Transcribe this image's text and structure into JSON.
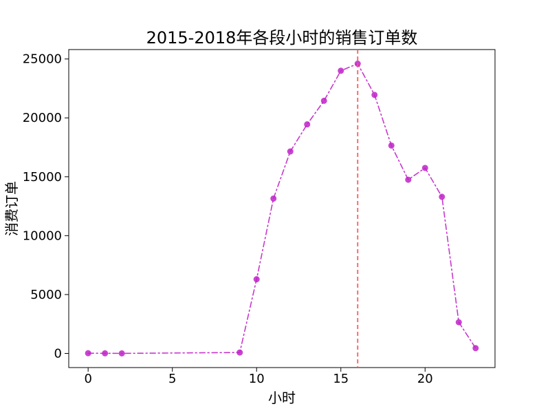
{
  "chart_data": {
    "type": "line",
    "title": "2015-2018年各段小时的销售订单数",
    "xlabel": "小时",
    "ylabel": "消费订单",
    "x": [
      0,
      1,
      2,
      9,
      10,
      11,
      12,
      13,
      14,
      15,
      16,
      17,
      18,
      19,
      20,
      21,
      22,
      23
    ],
    "series": [
      {
        "values": [
          20,
          10,
          5,
          80,
          6300,
          13150,
          17150,
          19450,
          21450,
          24000,
          24600,
          21950,
          17650,
          14750,
          15750,
          13300,
          2650,
          450
        ],
        "color": "#c022c8",
        "line_style": "dash-dot",
        "marker": "circle"
      }
    ],
    "reference_line": {
      "orientation": "vertical",
      "x": 16,
      "color": "#ff5a5a",
      "line_style": "dashed"
    },
    "xlim": [
      -1.15,
      24.15
    ],
    "ylim": [
      -1200,
      25800
    ],
    "xticks": [
      0,
      5,
      10,
      15,
      20
    ],
    "xtick_labels": [
      "0",
      "5",
      "10",
      "15",
      "20"
    ],
    "yticks": [
      0,
      5000,
      10000,
      15000,
      20000,
      25000
    ],
    "ytick_labels": [
      "0",
      "5000",
      "10000",
      "15000",
      "20000",
      "25000"
    ],
    "grid": false,
    "legend": "none"
  }
}
